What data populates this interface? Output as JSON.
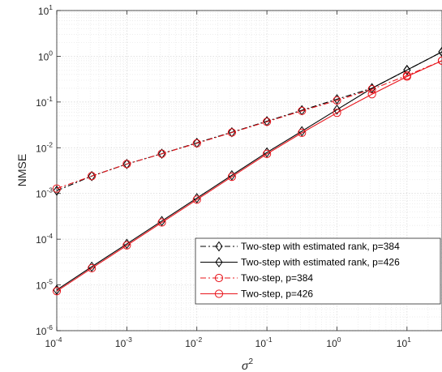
{
  "chart_data": {
    "type": "line",
    "title": "",
    "xlabel": "σ",
    "xlabel_superscript": "2",
    "ylabel": "NMSE",
    "xscale": "log",
    "yscale": "log",
    "xlim": [
      0.0001,
      31.6
    ],
    "ylim": [
      1e-06,
      10
    ],
    "grid": true,
    "minor_grid": true,
    "legend_position": "bottom-right",
    "x_ticks": [
      {
        "base": "10",
        "exp": "-4"
      },
      {
        "base": "10",
        "exp": "-3"
      },
      {
        "base": "10",
        "exp": "-2"
      },
      {
        "base": "10",
        "exp": "-1"
      },
      {
        "base": "10",
        "exp": "0"
      },
      {
        "base": "10",
        "exp": "1"
      }
    ],
    "y_ticks": [
      {
        "base": "10",
        "exp": "-6"
      },
      {
        "base": "10",
        "exp": "-5"
      },
      {
        "base": "10",
        "exp": "-4"
      },
      {
        "base": "10",
        "exp": "-3"
      },
      {
        "base": "10",
        "exp": "-2"
      },
      {
        "base": "10",
        "exp": "-1"
      },
      {
        "base": "10",
        "exp": "0"
      },
      {
        "base": "10",
        "exp": "1"
      }
    ],
    "x": [
      0.0001,
      0.000316,
      0.001,
      0.00316,
      0.01,
      0.0316,
      0.1,
      0.316,
      1,
      3.16,
      10,
      31.6
    ],
    "series": [
      {
        "name": "Two-step with estimated rank, p=384",
        "color": "#000000",
        "line_style": "dashdot",
        "marker": "diamond",
        "values": [
          0.00115,
          0.0024,
          0.0044,
          0.0074,
          0.0128,
          0.0218,
          0.038,
          0.066,
          0.115,
          0.2,
          0.5,
          1.25
        ]
      },
      {
        "name": "Two-step with estimated rank, p=426",
        "color": "#000000",
        "line_style": "solid",
        "marker": "diamond",
        "values": [
          7.8e-06,
          2.5e-05,
          7.9e-05,
          0.00025,
          0.00079,
          0.0025,
          0.0079,
          0.023,
          0.068,
          0.2,
          0.5,
          1.25
        ]
      },
      {
        "name": "Two-step, p=384",
        "color": "#e8141b",
        "line_style": "dashdot",
        "marker": "circle",
        "values": [
          0.00128,
          0.0024,
          0.0044,
          0.0074,
          0.0125,
          0.0215,
          0.037,
          0.064,
          0.108,
          0.19,
          0.38,
          0.8
        ]
      },
      {
        "name": "Two-step, p=426",
        "color": "#e8141b",
        "line_style": "solid",
        "marker": "circle",
        "values": [
          7.3e-06,
          2.32e-05,
          7.33e-05,
          0.000232,
          0.000733,
          0.00232,
          0.00733,
          0.0212,
          0.058,
          0.148,
          0.36,
          0.8
        ]
      }
    ]
  }
}
